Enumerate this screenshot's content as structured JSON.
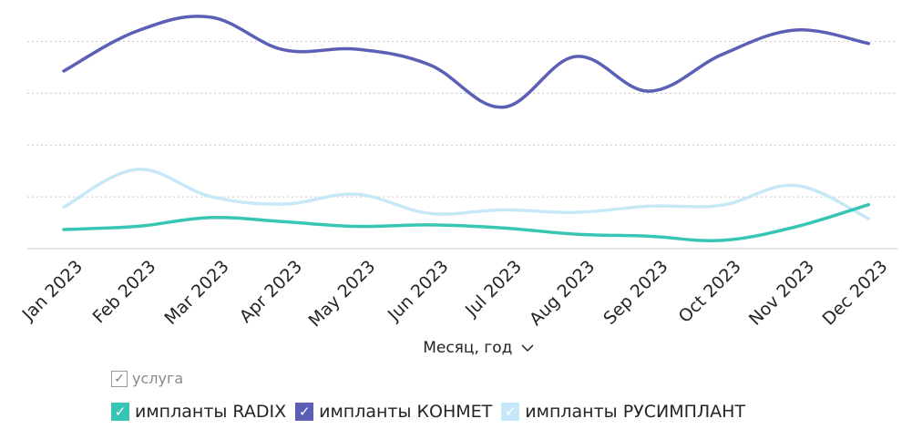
{
  "chart_data": {
    "type": "line",
    "categories": [
      "Jan 2023",
      "Feb 2023",
      "Mar 2023",
      "Apr 2023",
      "May 2023",
      "Jun 2023",
      "Jul 2023",
      "Aug 2023",
      "Sep 2023",
      "Oct 2023",
      "Nov 2023",
      "Dec 2023"
    ],
    "series": [
      {
        "name": "импланты RADIX",
        "color": "#37C6B4",
        "values": [
          3.7,
          4.3,
          6.0,
          5.2,
          4.3,
          4.6,
          4.0,
          2.8,
          2.4,
          1.6,
          4.2,
          8.5
        ]
      },
      {
        "name": "импланты КОНМЕТ",
        "color": "#5B5FB5",
        "values": [
          34.3,
          42.0,
          44.7,
          38.4,
          38.5,
          35.5,
          27.3,
          37.1,
          30.4,
          37.5,
          42.2,
          39.6
        ]
      },
      {
        "name": "импланты РУСИМПЛАНТ",
        "color": "#C7E8F7",
        "values": [
          8.0,
          15.3,
          10.1,
          8.6,
          10.5,
          6.8,
          7.5,
          7.0,
          8.2,
          8.4,
          12.2,
          5.8
        ]
      }
    ],
    "ylim": [
      0,
      48
    ],
    "yticks": [
      10,
      20,
      30,
      40
    ],
    "grid": "horizontal-dotted",
    "xlabel": "Месяц, год",
    "legend": "bottom-left"
  },
  "filter": {
    "label": "услуга",
    "checked": true
  },
  "legend_check": "✓"
}
